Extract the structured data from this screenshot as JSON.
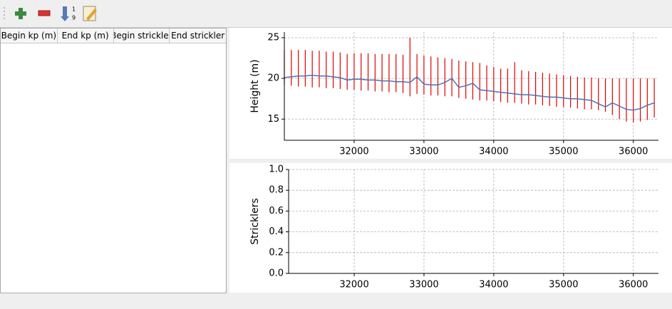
{
  "table": {
    "headers": [
      "Begin kp (m)",
      "End kp (m)",
      "Begin strickler",
      "End strickler"
    ]
  },
  "chart_data": [
    {
      "type": "line",
      "ylabel": "Height (m)",
      "xlim": [
        31000,
        36360
      ],
      "ylim": [
        12.4,
        25.7
      ],
      "xticks": [
        32000,
        33000,
        34000,
        35000,
        36000
      ],
      "yticks": [
        15,
        20,
        25
      ],
      "grid": true,
      "x": [
        31000,
        31100,
        31200,
        31300,
        31400,
        31500,
        31600,
        31700,
        31800,
        31900,
        32000,
        32100,
        32200,
        32300,
        32400,
        32500,
        32600,
        32700,
        32800,
        32900,
        33000,
        33100,
        33200,
        33300,
        33400,
        33500,
        33600,
        33700,
        33800,
        33900,
        34000,
        34100,
        34200,
        34300,
        34400,
        34500,
        34600,
        34700,
        34800,
        34900,
        35000,
        35100,
        35200,
        35300,
        35400,
        35500,
        35600,
        35700,
        35800,
        35900,
        36000,
        36100,
        36200,
        36300
      ],
      "series": [
        {
          "color": "#e00000",
          "high": [
            23.5,
            23.5,
            23.5,
            23.5,
            23.4,
            23.4,
            23.3,
            23.3,
            23.2,
            23.0,
            23.1,
            23.1,
            23.1,
            23.0,
            23.0,
            23.0,
            23.0,
            22.9,
            25.0,
            23.0,
            22.8,
            22.7,
            22.6,
            22.5,
            22.4,
            22.2,
            22.1,
            22.0,
            21.9,
            21.6,
            21.4,
            21.2,
            21.2,
            22.0,
            21.0,
            20.9,
            20.8,
            20.7,
            20.6,
            20.5,
            20.4,
            20.3,
            20.2,
            20.1,
            20.1,
            20.0,
            20.0,
            20.0,
            20.0,
            20.0,
            20.0,
            20.0,
            20.0,
            20.0
          ],
          "low": [
            19.2,
            19.1,
            19.0,
            19.0,
            18.9,
            18.9,
            18.8,
            18.8,
            18.7,
            18.6,
            18.6,
            18.5,
            18.5,
            18.4,
            18.4,
            18.3,
            18.3,
            18.2,
            17.8,
            18.1,
            18.0,
            17.9,
            17.9,
            17.8,
            17.8,
            17.6,
            17.5,
            17.4,
            17.3,
            17.3,
            17.2,
            17.1,
            17.0,
            17.0,
            16.9,
            16.8,
            16.8,
            16.7,
            16.6,
            16.5,
            16.5,
            16.4,
            16.3,
            16.2,
            16.2,
            16.1,
            15.9,
            15.5,
            15.0,
            14.7,
            14.6,
            14.7,
            14.9,
            15.2
          ]
        },
        {
          "color": "#4a72b8",
          "values": [
            20.1,
            20.2,
            20.3,
            20.3,
            20.4,
            20.3,
            20.3,
            20.2,
            20.1,
            19.8,
            19.9,
            19.9,
            19.8,
            19.8,
            19.7,
            19.7,
            19.6,
            19.6,
            19.5,
            20.2,
            19.3,
            19.2,
            19.2,
            19.5,
            20.0,
            18.9,
            19.1,
            19.4,
            18.6,
            18.5,
            18.4,
            18.3,
            18.2,
            18.1,
            18.0,
            18.0,
            17.9,
            17.8,
            17.7,
            17.7,
            17.6,
            17.5,
            17.5,
            17.4,
            17.3,
            16.9,
            16.5,
            17.0,
            16.6,
            16.2,
            16.1,
            16.3,
            16.7,
            17.0
          ]
        }
      ]
    },
    {
      "type": "line",
      "ylabel": "Stricklers",
      "xlim": [
        31060,
        36360
      ],
      "ylim": [
        0,
        1
      ],
      "xticks": [
        32000,
        33000,
        34000,
        35000,
        36000
      ],
      "yticks": [
        {
          "value": 0,
          "label": "0.0"
        },
        0.2,
        0.4,
        0.6,
        0.8,
        {
          "value": 1,
          "label": "1.0"
        }
      ],
      "grid": true
    }
  ]
}
